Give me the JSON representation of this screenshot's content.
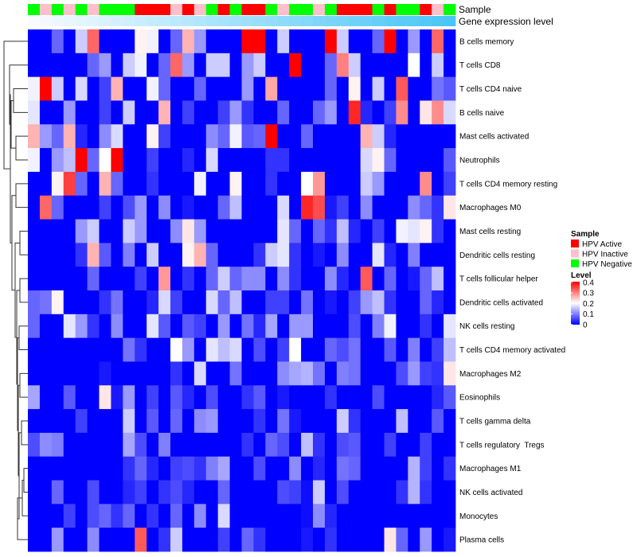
{
  "chart_data": {
    "type": "heatmap",
    "title": "",
    "rows": [
      "B cells memory",
      "T cells CD8",
      "T cells CD4 naive",
      "B cells naive",
      "Mast cells activated",
      "Neutrophils",
      "T cells CD4 memory resting",
      "Macrophages M0",
      "Mast cells resting",
      "Dendritic cells resting",
      "T cells follicular helper",
      "Dendritic cells activated",
      "NK cells resting",
      "T cells CD4 memory activated",
      "Macrophages M2",
      "Eosinophils",
      "T cells gamma delta",
      "T cells regulatory  Tregs",
      "Macrophages M1",
      "NK cells activated",
      "Monocytes",
      "Plasma cells"
    ],
    "column_annotations": {
      "sample_label": "Sample",
      "gene_label": "Gene expression level",
      "sample": [
        "HPV Negative",
        "HPV Inactive",
        "HPV Negative",
        "HPV Inactive",
        "HPV Negative",
        "HPV Inactive",
        "HPV Negative",
        "HPV Negative",
        "HPV Negative",
        "HPV Active",
        "HPV Active",
        "HPV Active",
        "HPV Inactive",
        "HPV Active",
        "HPV Inactive",
        "HPV Negative",
        "HPV Active",
        "HPV Negative",
        "HPV Active",
        "HPV Active",
        "HPV Negative",
        "HPV Inactive",
        "HPV Negative",
        "HPV Negative",
        "HPV Inactive",
        "HPV Negative",
        "HPV Active",
        "HPV Active",
        "HPV Active",
        "HPV Negative",
        "HPV Active",
        "HPV Negative",
        "HPV Negative",
        "HPV Active",
        "HPV Inactive",
        "HPV Negative"
      ],
      "gene_expression_level": [
        0,
        0.03,
        0.06,
        0.09,
        0.11,
        0.14,
        0.17,
        0.2,
        0.23,
        0.26,
        0.29,
        0.31,
        0.34,
        0.37,
        0.4,
        0.43,
        0.46,
        0.49,
        0.51,
        0.54,
        0.57,
        0.6,
        0.63,
        0.66,
        0.69,
        0.71,
        0.74,
        0.77,
        0.8,
        0.83,
        0.86,
        0.89,
        0.91,
        0.94,
        0.97,
        1
      ]
    },
    "values": [
      [
        0,
        0,
        0.08,
        0,
        0.16,
        0.32,
        0,
        0,
        0,
        0.21,
        0.19,
        0,
        0.08,
        0.26,
        0.12,
        0,
        0,
        0,
        0.4,
        0.4,
        0,
        0.16,
        0,
        0,
        0,
        0.4,
        0.16,
        0,
        0,
        0.08,
        0.4,
        0,
        0.12,
        0,
        0.32,
        0
      ],
      [
        0,
        0,
        0,
        0,
        0,
        0.08,
        0.12,
        0,
        0.16,
        0.19,
        0,
        0.08,
        0.32,
        0.12,
        0,
        0.16,
        0.16,
        0,
        0.12,
        0.16,
        0,
        0,
        0.4,
        0,
        0,
        0.08,
        0.3,
        0.16,
        0,
        0,
        0,
        0,
        0.2,
        0,
        0.16,
        0
      ],
      [
        0.19,
        0.4,
        0.16,
        0,
        0.17,
        0,
        0.05,
        0.26,
        0,
        0,
        0.19,
        0.08,
        0,
        0,
        0.08,
        0,
        0,
        0,
        0.12,
        0,
        0.27,
        0,
        0,
        0,
        0,
        0.08,
        0,
        0.21,
        0,
        0.16,
        0,
        0.33,
        0,
        0,
        0.09,
        0.07
      ],
      [
        0.18,
        0,
        0,
        0.12,
        0,
        0,
        0.05,
        0,
        0.16,
        0,
        0,
        0.26,
        0,
        0.05,
        0,
        0,
        0.05,
        0.12,
        0.04,
        0,
        0,
        0.08,
        0,
        0,
        0.08,
        0.12,
        0,
        0.37,
        0.03,
        0,
        0.05,
        0.29,
        0,
        0.22,
        0.29,
        0.17
      ],
      [
        0.26,
        0.12,
        0.08,
        0.26,
        0.03,
        0,
        0.11,
        0.17,
        0,
        0,
        0.21,
        0.05,
        0,
        0,
        0,
        0.11,
        0.08,
        0.19,
        0.07,
        0.08,
        0.4,
        0,
        0,
        0.08,
        0,
        0,
        0,
        0,
        0.26,
        0.16,
        0.03,
        0,
        0,
        0,
        0,
        0
      ],
      [
        0.19,
        0,
        0.12,
        0.15,
        0.4,
        0.08,
        0.2,
        0.4,
        0,
        0,
        0.05,
        0,
        0,
        0.03,
        0,
        0.17,
        0,
        0,
        0,
        0,
        0.04,
        0.04,
        0,
        0,
        0,
        0,
        0,
        0,
        0.17,
        0.21,
        0.08,
        0,
        0,
        0,
        0,
        0.07
      ],
      [
        0,
        0,
        0.21,
        0.35,
        0.08,
        0,
        0.26,
        0.08,
        0,
        0,
        0.04,
        0,
        0,
        0,
        0.19,
        0,
        0,
        0.21,
        0,
        0,
        0.04,
        0,
        0,
        0.2,
        0.28,
        0,
        0,
        0,
        0.16,
        0.12,
        0,
        0,
        0,
        0.29,
        0,
        0.05
      ],
      [
        0,
        0.32,
        0.08,
        0,
        0,
        0,
        0.05,
        0,
        0.06,
        0.12,
        0,
        0.11,
        0,
        0.02,
        0,
        0,
        0.08,
        0.15,
        0,
        0,
        0,
        0.17,
        0,
        0.37,
        0.34,
        0.02,
        0.05,
        0,
        0.11,
        0,
        0,
        0,
        0.11,
        0.08,
        0.04,
        0.22
      ],
      [
        0,
        0,
        0,
        0,
        0.12,
        0.16,
        0,
        0,
        0.16,
        0.12,
        0,
        0,
        0.11,
        0.22,
        0.12,
        0,
        0,
        0,
        0,
        0,
        0,
        0.18,
        0.08,
        0,
        0.08,
        0.04,
        0.15,
        0.03,
        0,
        0.05,
        0,
        0.19,
        0.18,
        0.21,
        0.04,
        0
      ],
      [
        0,
        0,
        0,
        0,
        0.04,
        0.26,
        0.07,
        0,
        0.1,
        0,
        0.16,
        0,
        0,
        0.21,
        0.26,
        0.08,
        0,
        0,
        0,
        0.04,
        0.16,
        0.18,
        0.04,
        0,
        0.02,
        0,
        0.11,
        0,
        0,
        0.18,
        0.03,
        0,
        0.1,
        0,
        0,
        0
      ],
      [
        0,
        0,
        0,
        0,
        0,
        0.08,
        0,
        0,
        0,
        0.05,
        0,
        0.28,
        0,
        0.04,
        0,
        0.08,
        0.16,
        0.08,
        0.11,
        0.11,
        0,
        0.11,
        0.04,
        0,
        0,
        0.11,
        0.03,
        0,
        0.33,
        0,
        0.08,
        0,
        0.02,
        0.08,
        0.15,
        0
      ],
      [
        0.08,
        0.09,
        0.21,
        0,
        0,
        0,
        0.04,
        0.09,
        0,
        0,
        0.03,
        0.17,
        0.05,
        0,
        0,
        0.17,
        0.08,
        0.15,
        0,
        0,
        0.05,
        0.05,
        0,
        0.09,
        0,
        0.02,
        0,
        0.05,
        0.12,
        0.15,
        0.04,
        0,
        0,
        0.08,
        0.03,
        0
      ],
      [
        0.08,
        0,
        0,
        0.18,
        0.12,
        0.04,
        0,
        0.11,
        0,
        0,
        0.18,
        0.07,
        0,
        0.07,
        0.05,
        0,
        0.12,
        0,
        0.09,
        0.03,
        0.13,
        0,
        0.12,
        0.12,
        0,
        0,
        0,
        0.06,
        0,
        0.1,
        0.19,
        0,
        0,
        0.04,
        0,
        0.18
      ],
      [
        0,
        0,
        0,
        0,
        0,
        0,
        0,
        0,
        0.09,
        0.04,
        0,
        0,
        0.2,
        0.12,
        0,
        0.18,
        0.15,
        0.17,
        0,
        0.06,
        0,
        0.05,
        0.2,
        0,
        0,
        0.08,
        0.06,
        0.09,
        0,
        0,
        0.07,
        0,
        0.1,
        0,
        0.05,
        0.15
      ],
      [
        0,
        0,
        0,
        0,
        0,
        0,
        0.02,
        0,
        0,
        0,
        0,
        0,
        0.04,
        0,
        0.17,
        0,
        0,
        0.09,
        0,
        0,
        0,
        0.11,
        0.13,
        0.14,
        0.09,
        0,
        0.1,
        0.09,
        0,
        0,
        0,
        0.06,
        0.12,
        0.05,
        0.04,
        0.22
      ],
      [
        0.13,
        0,
        0,
        0.07,
        0,
        0,
        0.22,
        0.02,
        0.12,
        0,
        0.05,
        0,
        0.07,
        0.03,
        0,
        0.06,
        0,
        0,
        0.04,
        0.07,
        0,
        0.02,
        0,
        0,
        0,
        0.04,
        0,
        0,
        0,
        0.06,
        0,
        0,
        0,
        0,
        0.03,
        0.07
      ],
      [
        0,
        0,
        0,
        0,
        0.05,
        0,
        0,
        0,
        0.16,
        0,
        0.07,
        0,
        0.08,
        0,
        0.11,
        0.12,
        0,
        0,
        0,
        0.04,
        0,
        0.09,
        0.02,
        0,
        0,
        0,
        0.16,
        0.04,
        0,
        0,
        0,
        0.15,
        0,
        0,
        0.07,
        0
      ],
      [
        0.06,
        0.11,
        0.1,
        0,
        0,
        0,
        0,
        0,
        0.13,
        0.06,
        0,
        0.1,
        0,
        0,
        0,
        0,
        0,
        0,
        0.04,
        0,
        0.08,
        0.06,
        0,
        0.15,
        0.04,
        0,
        0.06,
        0.07,
        0,
        0,
        0.05,
        0,
        0,
        0.05,
        0,
        0
      ],
      [
        0,
        0,
        0,
        0,
        0,
        0,
        0,
        0,
        0.04,
        0.08,
        0.03,
        0,
        0.05,
        0.06,
        0.04,
        0.1,
        0.13,
        0,
        0,
        0.06,
        0,
        0,
        0.11,
        0,
        0.03,
        0,
        0.09,
        0.08,
        0,
        0,
        0,
        0,
        0.14,
        0.05,
        0,
        0.04
      ],
      [
        0,
        0,
        0.08,
        0,
        0,
        0.06,
        0,
        0,
        0.03,
        0.05,
        0,
        0.04,
        0.06,
        0.03,
        0,
        0,
        0.08,
        0,
        0,
        0,
        0,
        0.06,
        0.05,
        0.01,
        0.16,
        0,
        0.06,
        0,
        0,
        0,
        0,
        0.04,
        0.14,
        0.04,
        0,
        0
      ],
      [
        0,
        0,
        0,
        0.05,
        0,
        0.06,
        0.08,
        0.04,
        0.08,
        0,
        0.04,
        0,
        0.08,
        0,
        0.11,
        0,
        0.17,
        0,
        0,
        0,
        0,
        0,
        0,
        0.01,
        0.11,
        0.03,
        0,
        0,
        0,
        0,
        0,
        0,
        0,
        0,
        0,
        0
      ],
      [
        0,
        0,
        0.12,
        0,
        0,
        0.11,
        0,
        0,
        0,
        0.33,
        0,
        0.04,
        0.16,
        0,
        0,
        0,
        0.05,
        0,
        0.08,
        0.04,
        0,
        0,
        0,
        0.02,
        0,
        0.04,
        0,
        0,
        0,
        0,
        0.22,
        0.08,
        0,
        0.12,
        0,
        0.02
      ]
    ],
    "color_scale": {
      "min": 0,
      "mid": 0.2,
      "max": 0.4,
      "low_color": "#0000ff",
      "mid_color": "#ffffff",
      "high_color": "#ff0000"
    },
    "legend": {
      "sample_title": "Sample",
      "sample_entries": [
        {
          "label": "HPV Active",
          "color": "#ff0000"
        },
        {
          "label": "HPV Inactive",
          "color": "#ffc0cb"
        },
        {
          "label": "HPV Negative",
          "color": "#00ff00"
        }
      ],
      "level_title": "Level",
      "level_ticks": [
        "0.4",
        "0.3",
        "0.2",
        "0.1",
        "0"
      ],
      "placement": "right"
    },
    "gene_level_colors": [
      "#f8fbff",
      "#48c6f6"
    ],
    "row_dendrogram": true
  }
}
